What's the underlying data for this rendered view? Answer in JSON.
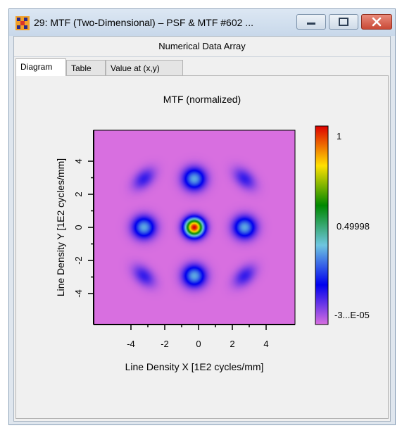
{
  "window": {
    "title": "29: MTF (Two-Dimensional) – PSF & MTF #602 ...",
    "subtitle": "Numerical Data Array",
    "icons": [
      "app-icon",
      "minimize-icon",
      "maximize-icon",
      "close-icon"
    ]
  },
  "tabs": [
    {
      "label": "Diagram",
      "active": true
    },
    {
      "label": "Table",
      "active": false
    },
    {
      "label": "Value at (x,y)",
      "active": false
    }
  ],
  "chart_data": {
    "type": "heatmap",
    "title": "MTF (normalized)",
    "xlabel": "Line Density X [1E2 cycles/mm]",
    "ylabel": "Line Density Y [1E2 cycles/mm]",
    "xlim": [
      -5.8,
      5.8
    ],
    "ylim": [
      -5.8,
      5.8
    ],
    "xticks": [
      "-4",
      "-2",
      "0",
      "2",
      "4"
    ],
    "yticks": [
      "4",
      "2",
      "0",
      "-2",
      "-4"
    ],
    "colorbar": {
      "max_label": "1",
      "mid_label": "0.49998",
      "min_label": "-3...E-05",
      "colors": [
        "#d86fe0",
        "#0000ee",
        "#6ec6e0",
        "#008800",
        "#ffe000",
        "#dd0000"
      ]
    },
    "peaks": [
      {
        "x": 0,
        "y": 0,
        "value": 1.0
      },
      {
        "x": -2.9,
        "y": 0,
        "value": 0.37
      },
      {
        "x": 2.9,
        "y": 0,
        "value": 0.37
      },
      {
        "x": 0,
        "y": 2.9,
        "value": 0.37
      },
      {
        "x": 0,
        "y": -2.9,
        "value": 0.37
      },
      {
        "x": -2.9,
        "y": 2.9,
        "value": 0.15
      },
      {
        "x": 2.9,
        "y": 2.9,
        "value": 0.15
      },
      {
        "x": -2.9,
        "y": -2.9,
        "value": 0.15
      },
      {
        "x": 2.9,
        "y": -2.9,
        "value": 0.15
      }
    ]
  }
}
